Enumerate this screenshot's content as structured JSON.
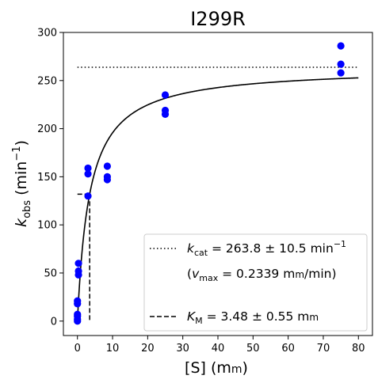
{
  "chart_data": {
    "type": "scatter",
    "title": "I299R",
    "xlabel": {
      "main": "[S] (m",
      "unit_sc": "m",
      "tail": ")"
    },
    "ylabel": {
      "k": "k",
      "sub": "obs",
      "unit": " (min",
      "sup": "−1",
      "tail": ")"
    },
    "xlim": [
      -4,
      84
    ],
    "ylim": [
      -15,
      300
    ],
    "xticks": [
      0,
      10,
      20,
      30,
      40,
      50,
      60,
      70,
      80
    ],
    "yticks": [
      0,
      50,
      100,
      150,
      200,
      250,
      300
    ],
    "grid": false,
    "points_color": "#0000ff",
    "points": [
      {
        "x": 0,
        "y": 0
      },
      {
        "x": 0,
        "y": 2
      },
      {
        "x": 0,
        "y": 5
      },
      {
        "x": 0,
        "y": 7
      },
      {
        "x": 0,
        "y": 18
      },
      {
        "x": 0,
        "y": 21
      },
      {
        "x": 0.3,
        "y": 48
      },
      {
        "x": 0.3,
        "y": 52
      },
      {
        "x": 0.3,
        "y": 60
      },
      {
        "x": 3,
        "y": 130
      },
      {
        "x": 3,
        "y": 153
      },
      {
        "x": 3,
        "y": 159
      },
      {
        "x": 8.5,
        "y": 147
      },
      {
        "x": 8.5,
        "y": 150
      },
      {
        "x": 8.5,
        "y": 161
      },
      {
        "x": 25,
        "y": 215
      },
      {
        "x": 25,
        "y": 219
      },
      {
        "x": 25,
        "y": 235
      },
      {
        "x": 75,
        "y": 258
      },
      {
        "x": 75,
        "y": 267
      },
      {
        "x": 75,
        "y": 286
      }
    ],
    "fit": {
      "type": "michaelis-menten",
      "kcat": 263.8,
      "km": 3.48,
      "x_range": [
        0,
        80
      ]
    },
    "kcat_line": {
      "y": 263.8,
      "x_range": [
        0,
        80
      ]
    },
    "km_marker": {
      "x": 3.48,
      "half_vmax": 131.9,
      "horizontal_x_range": [
        0,
        3.48
      ]
    },
    "legend": {
      "placement": "lower-right",
      "kcat_entry": {
        "k": "k",
        "sub": "cat",
        "text": " = 263.8 ± 10.5 min",
        "sup": "−1"
      },
      "vmax_entry": {
        "open": "(",
        "v": "v",
        "sub": "max",
        "text": " = 0.2339 m",
        "unit_sc": "m",
        "tail": "/min)"
      },
      "km_entry": {
        "k": "K",
        "sub": "M",
        "text": " = 3.48 ± 0.55 m",
        "unit_sc": "m"
      }
    }
  }
}
